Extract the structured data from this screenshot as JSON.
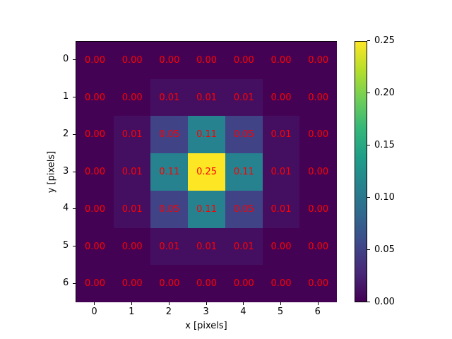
{
  "chart_data": {
    "type": "heatmap",
    "title": "",
    "xlabel": "x [pixels]",
    "ylabel": "y [pixels]",
    "x_ticks": [
      "0",
      "1",
      "2",
      "3",
      "4",
      "5",
      "6"
    ],
    "y_ticks": [
      "0",
      "1",
      "2",
      "3",
      "4",
      "5",
      "6"
    ],
    "colormap": "viridis",
    "annotation_color": "#ff0000",
    "values": [
      [
        0.0,
        0.0,
        0.0,
        0.0,
        0.0,
        0.0,
        0.0
      ],
      [
        0.0,
        0.0,
        0.01,
        0.01,
        0.01,
        0.0,
        0.0
      ],
      [
        0.0,
        0.01,
        0.05,
        0.11,
        0.05,
        0.01,
        0.0
      ],
      [
        0.0,
        0.01,
        0.11,
        0.25,
        0.11,
        0.01,
        0.0
      ],
      [
        0.0,
        0.01,
        0.05,
        0.11,
        0.05,
        0.01,
        0.0
      ],
      [
        0.0,
        0.0,
        0.01,
        0.01,
        0.01,
        0.0,
        0.0
      ],
      [
        0.0,
        0.0,
        0.0,
        0.0,
        0.0,
        0.0,
        0.0
      ]
    ],
    "colorbar": {
      "ticks": [
        "0.00",
        "0.05",
        "0.10",
        "0.15",
        "0.20",
        "0.25"
      ],
      "range": [
        0,
        0.25
      ]
    }
  }
}
